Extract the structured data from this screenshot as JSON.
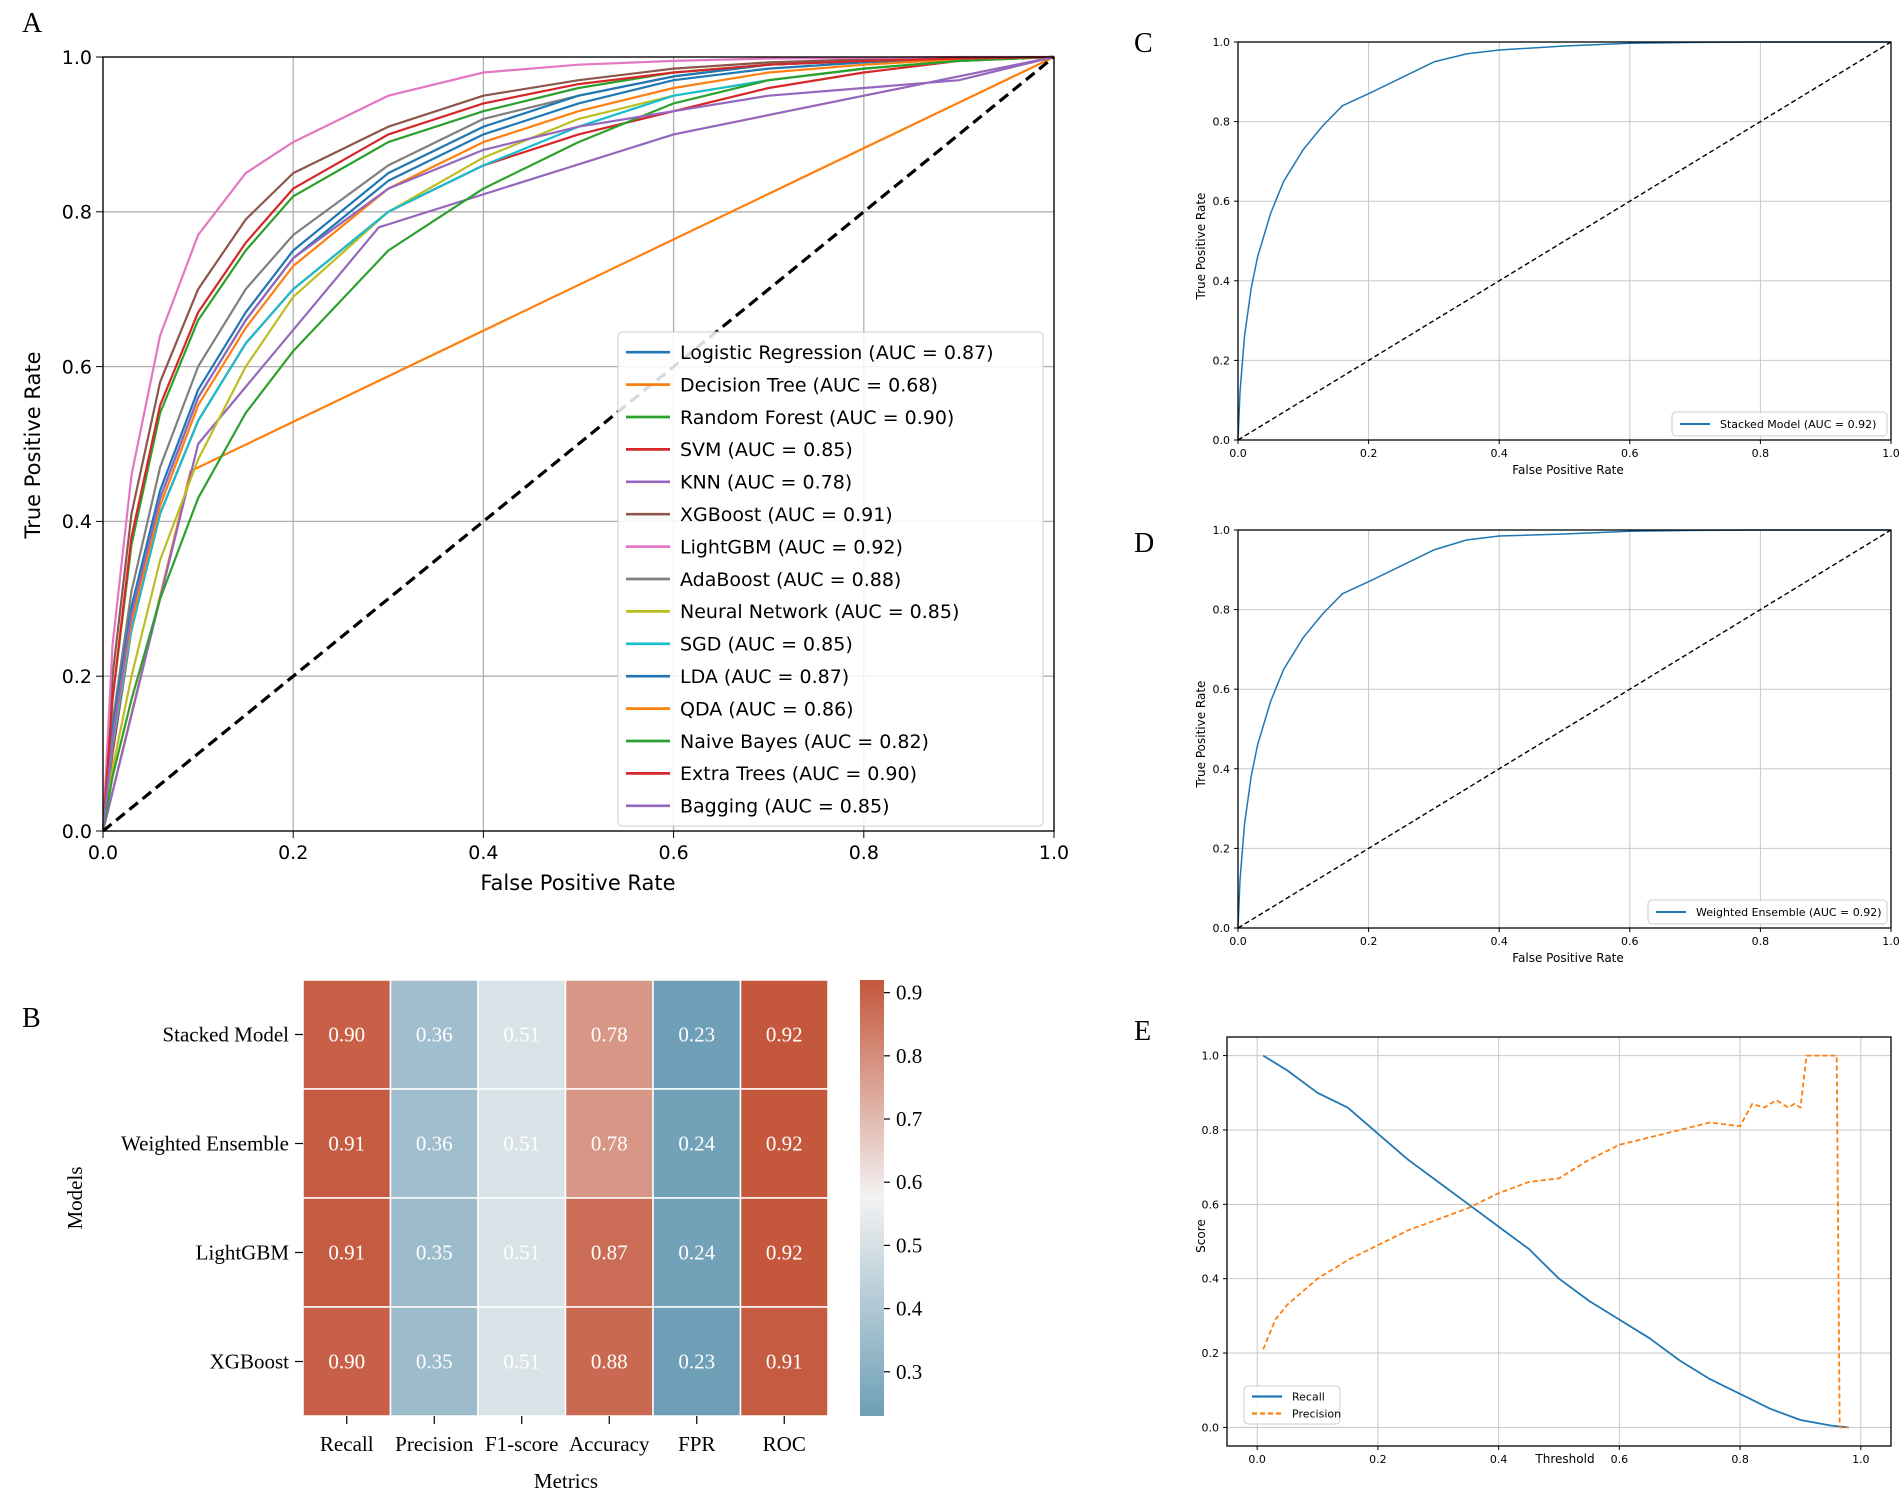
{
  "chart_data": [
    {
      "panel_label": "A",
      "type": "line",
      "title": "",
      "xlabel": "False Positive Rate",
      "ylabel": "True Positive Rate",
      "xlim": [
        0,
        1
      ],
      "ylim": [
        0,
        1
      ],
      "xticks": [
        "0.0",
        "0.2",
        "0.4",
        "0.6",
        "0.8",
        "1.0"
      ],
      "yticks": [
        "0.0",
        "0.2",
        "0.4",
        "0.6",
        "0.8",
        "1.0"
      ],
      "grid": true,
      "legend_position": "lower-right",
      "series": [
        {
          "name": "Logistic Regression (AUC = 0.87)",
          "color": "#1f77b4",
          "x": [
            0,
            0.01,
            0.03,
            0.06,
            0.1,
            0.15,
            0.2,
            0.3,
            0.4,
            0.5,
            0.6,
            0.7,
            0.8,
            0.9,
            1
          ],
          "y": [
            0,
            0.12,
            0.28,
            0.43,
            0.56,
            0.66,
            0.74,
            0.84,
            0.9,
            0.94,
            0.97,
            0.985,
            0.993,
            0.998,
            1
          ]
        },
        {
          "name": "Decision Tree (AUC = 0.68)",
          "color": "#ff7f0e",
          "x": [
            0,
            0.092,
            1
          ],
          "y": [
            0,
            0.465,
            1
          ]
        },
        {
          "name": "Random Forest (AUC = 0.90)",
          "color": "#2ca02c",
          "x": [
            0,
            0.01,
            0.03,
            0.06,
            0.1,
            0.15,
            0.2,
            0.3,
            0.4,
            0.5,
            0.6,
            0.7,
            0.8,
            0.9,
            1
          ],
          "y": [
            0,
            0.17,
            0.37,
            0.54,
            0.66,
            0.75,
            0.82,
            0.89,
            0.93,
            0.96,
            0.98,
            0.99,
            0.995,
            0.998,
            1
          ]
        },
        {
          "name": "SVM (AUC = 0.85)",
          "color": "#d62728",
          "x": [
            0,
            0.01,
            0.03,
            0.06,
            0.1,
            0.15,
            0.2,
            0.3,
            0.4,
            0.5,
            0.6,
            0.7,
            0.8,
            0.9,
            1
          ],
          "y": [
            0,
            0.1,
            0.26,
            0.41,
            0.53,
            0.63,
            0.7,
            0.8,
            0.86,
            0.9,
            0.93,
            0.96,
            0.98,
            0.995,
            1
          ]
        },
        {
          "name": "KNN (AUC = 0.78)",
          "color": "#9467bd",
          "x": [
            0,
            0.1,
            0.29,
            0.6,
            1
          ],
          "y": [
            0,
            0.5,
            0.78,
            0.9,
            1
          ]
        },
        {
          "name": "XGBoost (AUC = 0.91)",
          "color": "#8c564b",
          "x": [
            0,
            0.01,
            0.03,
            0.06,
            0.1,
            0.15,
            0.2,
            0.3,
            0.4,
            0.5,
            0.6,
            0.7,
            0.8,
            0.9,
            1
          ],
          "y": [
            0,
            0.2,
            0.41,
            0.58,
            0.7,
            0.79,
            0.85,
            0.91,
            0.95,
            0.97,
            0.985,
            0.993,
            0.997,
            0.999,
            1
          ]
        },
        {
          "name": "LightGBM (AUC = 0.92)",
          "color": "#e377c2",
          "x": [
            0,
            0.01,
            0.03,
            0.06,
            0.1,
            0.15,
            0.2,
            0.3,
            0.4,
            0.5,
            0.6,
            0.7,
            0.8,
            0.9,
            1
          ],
          "y": [
            0,
            0.24,
            0.46,
            0.64,
            0.77,
            0.85,
            0.89,
            0.95,
            0.98,
            0.99,
            0.995,
            0.998,
            0.999,
            1,
            1
          ]
        },
        {
          "name": "AdaBoost (AUC = 0.88)",
          "color": "#7f7f7f",
          "x": [
            0,
            0.01,
            0.03,
            0.06,
            0.1,
            0.15,
            0.2,
            0.3,
            0.4,
            0.5,
            0.6,
            0.7,
            0.8,
            0.9,
            1
          ],
          "y": [
            0,
            0.14,
            0.31,
            0.47,
            0.6,
            0.7,
            0.77,
            0.86,
            0.92,
            0.95,
            0.975,
            0.99,
            0.995,
            0.998,
            1
          ]
        },
        {
          "name": "Neural Network (AUC = 0.85)",
          "color": "#bcbd22",
          "x": [
            0,
            0.01,
            0.03,
            0.06,
            0.1,
            0.15,
            0.2,
            0.3,
            0.4,
            0.5,
            0.6,
            0.7,
            0.8,
            0.9,
            1
          ],
          "y": [
            0,
            0.08,
            0.2,
            0.35,
            0.48,
            0.6,
            0.69,
            0.8,
            0.87,
            0.92,
            0.95,
            0.97,
            0.985,
            0.995,
            1
          ]
        },
        {
          "name": "SGD (AUC = 0.85)",
          "color": "#17becf",
          "x": [
            0,
            0.01,
            0.03,
            0.06,
            0.1,
            0.15,
            0.2,
            0.3,
            0.4,
            0.5,
            0.6,
            0.7,
            0.8,
            0.9,
            1
          ],
          "y": [
            0,
            0.11,
            0.26,
            0.41,
            0.53,
            0.63,
            0.7,
            0.8,
            0.86,
            0.91,
            0.95,
            0.97,
            0.985,
            0.995,
            1
          ]
        },
        {
          "name": "LDA (AUC = 0.87)",
          "color": "#1f77b4",
          "x": [
            0,
            0.01,
            0.03,
            0.06,
            0.1,
            0.15,
            0.2,
            0.3,
            0.4,
            0.5,
            0.6,
            0.7,
            0.8,
            0.9,
            1
          ],
          "y": [
            0,
            0.13,
            0.29,
            0.44,
            0.57,
            0.67,
            0.75,
            0.85,
            0.91,
            0.95,
            0.975,
            0.99,
            0.995,
            0.998,
            1
          ]
        },
        {
          "name": "QDA (AUC = 0.86)",
          "color": "#ff7f0e",
          "x": [
            0,
            0.01,
            0.03,
            0.06,
            0.1,
            0.15,
            0.2,
            0.3,
            0.4,
            0.5,
            0.6,
            0.7,
            0.8,
            0.9,
            1
          ],
          "y": [
            0,
            0.12,
            0.27,
            0.42,
            0.55,
            0.65,
            0.73,
            0.83,
            0.89,
            0.93,
            0.96,
            0.98,
            0.99,
            0.997,
            1
          ]
        },
        {
          "name": "Naive Bayes (AUC = 0.82)",
          "color": "#2ca02c",
          "x": [
            0,
            0.01,
            0.03,
            0.06,
            0.1,
            0.15,
            0.2,
            0.3,
            0.4,
            0.5,
            0.6,
            0.7,
            0.8,
            0.9,
            1
          ],
          "y": [
            0,
            0.07,
            0.17,
            0.3,
            0.43,
            0.54,
            0.62,
            0.75,
            0.83,
            0.89,
            0.94,
            0.97,
            0.985,
            0.995,
            1
          ]
        },
        {
          "name": "Extra Trees (AUC = 0.90)",
          "color": "#d62728",
          "x": [
            0,
            0.01,
            0.03,
            0.06,
            0.1,
            0.15,
            0.2,
            0.3,
            0.4,
            0.5,
            0.6,
            0.7,
            0.8,
            0.9,
            1
          ],
          "y": [
            0,
            0.17,
            0.38,
            0.55,
            0.67,
            0.76,
            0.83,
            0.9,
            0.94,
            0.965,
            0.98,
            0.99,
            0.995,
            0.998,
            1
          ]
        },
        {
          "name": "Bagging (AUC = 0.85)",
          "color": "#9467bd",
          "x": [
            0,
            0.01,
            0.03,
            0.06,
            0.1,
            0.15,
            0.2,
            0.3,
            0.4,
            0.5,
            0.6,
            0.7,
            0.8,
            0.9,
            1
          ],
          "y": [
            0,
            0.12,
            0.28,
            0.43,
            0.56,
            0.66,
            0.74,
            0.83,
            0.88,
            0.91,
            0.93,
            0.95,
            0.96,
            0.97,
            1
          ]
        },
        {
          "name": "",
          "color": "#000000",
          "style": "dashed",
          "x": [
            0,
            1
          ],
          "y": [
            0,
            1
          ]
        }
      ]
    },
    {
      "panel_label": "B",
      "type": "heatmap",
      "xlabel": "Metrics",
      "ylabel": "Models",
      "columns": [
        "Recall",
        "Precision",
        "F1-score",
        "Accuracy",
        "FPR",
        "ROC"
      ],
      "rows": [
        "Stacked Model",
        "Weighted Ensemble",
        "LightGBM",
        "XGBoost"
      ],
      "values": [
        [
          0.9,
          0.36,
          0.51,
          0.78,
          0.23,
          0.92
        ],
        [
          0.91,
          0.36,
          0.51,
          0.78,
          0.24,
          0.92
        ],
        [
          0.91,
          0.35,
          0.51,
          0.87,
          0.24,
          0.92
        ],
        [
          0.9,
          0.35,
          0.51,
          0.88,
          0.23,
          0.91
        ]
      ],
      "value_labels": [
        [
          "0.90",
          "0.36",
          "0.51",
          "0.78",
          "0.23",
          "0.92"
        ],
        [
          "0.91",
          "0.36",
          "0.51",
          "0.78",
          "0.24",
          "0.92"
        ],
        [
          "0.91",
          "0.35",
          "0.51",
          "0.87",
          "0.24",
          "0.92"
        ],
        [
          "0.90",
          "0.35",
          "0.51",
          "0.88",
          "0.23",
          "0.91"
        ]
      ],
      "colorbar_range": [
        0.23,
        0.92
      ],
      "colorbar_ticks": [
        "0.3",
        "0.4",
        "0.5",
        "0.6",
        "0.7",
        "0.8",
        "0.9"
      ],
      "colors": {
        "low": "#6e9fb6",
        "mid": "#f2f2f2",
        "high": "#c4573c"
      }
    },
    {
      "panel_label": "C",
      "type": "line",
      "xlabel": "False Positive Rate",
      "ylabel": "True Positive Rate",
      "xlim": [
        0,
        1
      ],
      "ylim": [
        0,
        1
      ],
      "xticks": [
        "0.0",
        "0.2",
        "0.4",
        "0.6",
        "0.8",
        "1.0"
      ],
      "yticks": [
        "0.0",
        "0.2",
        "0.4",
        "0.6",
        "0.8",
        "1.0"
      ],
      "grid": true,
      "legend_position": "lower-right",
      "series": [
        {
          "name": "Stacked Model (AUC = 0.92)",
          "color": "#1f77b4",
          "x": [
            0,
            0.003,
            0.01,
            0.02,
            0.03,
            0.05,
            0.07,
            0.1,
            0.13,
            0.16,
            0.2,
            0.25,
            0.3,
            0.35,
            0.4,
            0.5,
            0.6,
            0.7,
            0.8,
            0.9,
            1
          ],
          "y": [
            0,
            0.12,
            0.26,
            0.38,
            0.46,
            0.57,
            0.65,
            0.73,
            0.79,
            0.84,
            0.87,
            0.91,
            0.95,
            0.97,
            0.98,
            0.99,
            0.997,
            0.999,
            1,
            1,
            1
          ]
        },
        {
          "name": "",
          "color": "#000000",
          "style": "dashed",
          "x": [
            0,
            1
          ],
          "y": [
            0,
            1
          ]
        }
      ]
    },
    {
      "panel_label": "D",
      "type": "line",
      "xlabel": "False Positive Rate",
      "ylabel": "True Positive Rate",
      "xlim": [
        0,
        1
      ],
      "ylim": [
        0,
        1
      ],
      "xticks": [
        "0.0",
        "0.2",
        "0.4",
        "0.6",
        "0.8",
        "1.0"
      ],
      "yticks": [
        "0.0",
        "0.2",
        "0.4",
        "0.6",
        "0.8",
        "1.0"
      ],
      "grid": true,
      "legend_position": "lower-right",
      "series": [
        {
          "name": "Weighted Ensemble (AUC = 0.92)",
          "color": "#1f77b4",
          "x": [
            0,
            0.003,
            0.01,
            0.02,
            0.03,
            0.05,
            0.07,
            0.1,
            0.13,
            0.16,
            0.2,
            0.25,
            0.3,
            0.35,
            0.4,
            0.5,
            0.6,
            0.7,
            0.8,
            0.9,
            1
          ],
          "y": [
            0,
            0.12,
            0.26,
            0.38,
            0.46,
            0.57,
            0.65,
            0.73,
            0.79,
            0.84,
            0.87,
            0.91,
            0.95,
            0.975,
            0.985,
            0.99,
            0.997,
            0.999,
            1,
            1,
            1
          ]
        },
        {
          "name": "",
          "color": "#000000",
          "style": "dashed",
          "x": [
            0,
            1
          ],
          "y": [
            0,
            1
          ]
        }
      ]
    },
    {
      "panel_label": "E",
      "type": "line",
      "xlabel": "Threshold",
      "ylabel": "Score",
      "xlim": [
        -0.05,
        1.05
      ],
      "ylim": [
        -0.05,
        1.05
      ],
      "xticks": [
        "0.0",
        "0.2",
        "0.4",
        "0.6",
        "0.8",
        "1.0"
      ],
      "yticks": [
        "0.0",
        "0.2",
        "0.4",
        "0.6",
        "0.8",
        "1.0"
      ],
      "grid": true,
      "legend_position": "lower-left",
      "series": [
        {
          "name": "Recall",
          "color": "#1f77b4",
          "style": "solid",
          "x": [
            0.01,
            0.05,
            0.1,
            0.15,
            0.2,
            0.25,
            0.3,
            0.35,
            0.4,
            0.45,
            0.5,
            0.55,
            0.6,
            0.65,
            0.7,
            0.75,
            0.8,
            0.85,
            0.9,
            0.95,
            0.98
          ],
          "y": [
            1.0,
            0.96,
            0.9,
            0.86,
            0.79,
            0.72,
            0.66,
            0.6,
            0.54,
            0.48,
            0.4,
            0.34,
            0.29,
            0.24,
            0.18,
            0.13,
            0.09,
            0.05,
            0.02,
            0.005,
            0.0
          ]
        },
        {
          "name": "Precision",
          "color": "#ff7f0e",
          "style": "dashed",
          "x": [
            0.01,
            0.03,
            0.05,
            0.1,
            0.15,
            0.2,
            0.25,
            0.3,
            0.35,
            0.4,
            0.45,
            0.5,
            0.55,
            0.6,
            0.65,
            0.7,
            0.75,
            0.8,
            0.82,
            0.84,
            0.86,
            0.88,
            0.89,
            0.9,
            0.905,
            0.91,
            0.92,
            0.95,
            0.96,
            0.965,
            0.98
          ],
          "y": [
            0.21,
            0.29,
            0.33,
            0.4,
            0.45,
            0.49,
            0.53,
            0.56,
            0.59,
            0.63,
            0.66,
            0.67,
            0.72,
            0.76,
            0.78,
            0.8,
            0.82,
            0.81,
            0.87,
            0.86,
            0.88,
            0.86,
            0.87,
            0.86,
            0.93,
            1.0,
            1.0,
            1.0,
            1.0,
            0.0,
            0.0
          ]
        }
      ]
    }
  ],
  "panel_labels": {
    "a": "A",
    "b": "B",
    "c": "C",
    "d": "D",
    "e": "E"
  }
}
